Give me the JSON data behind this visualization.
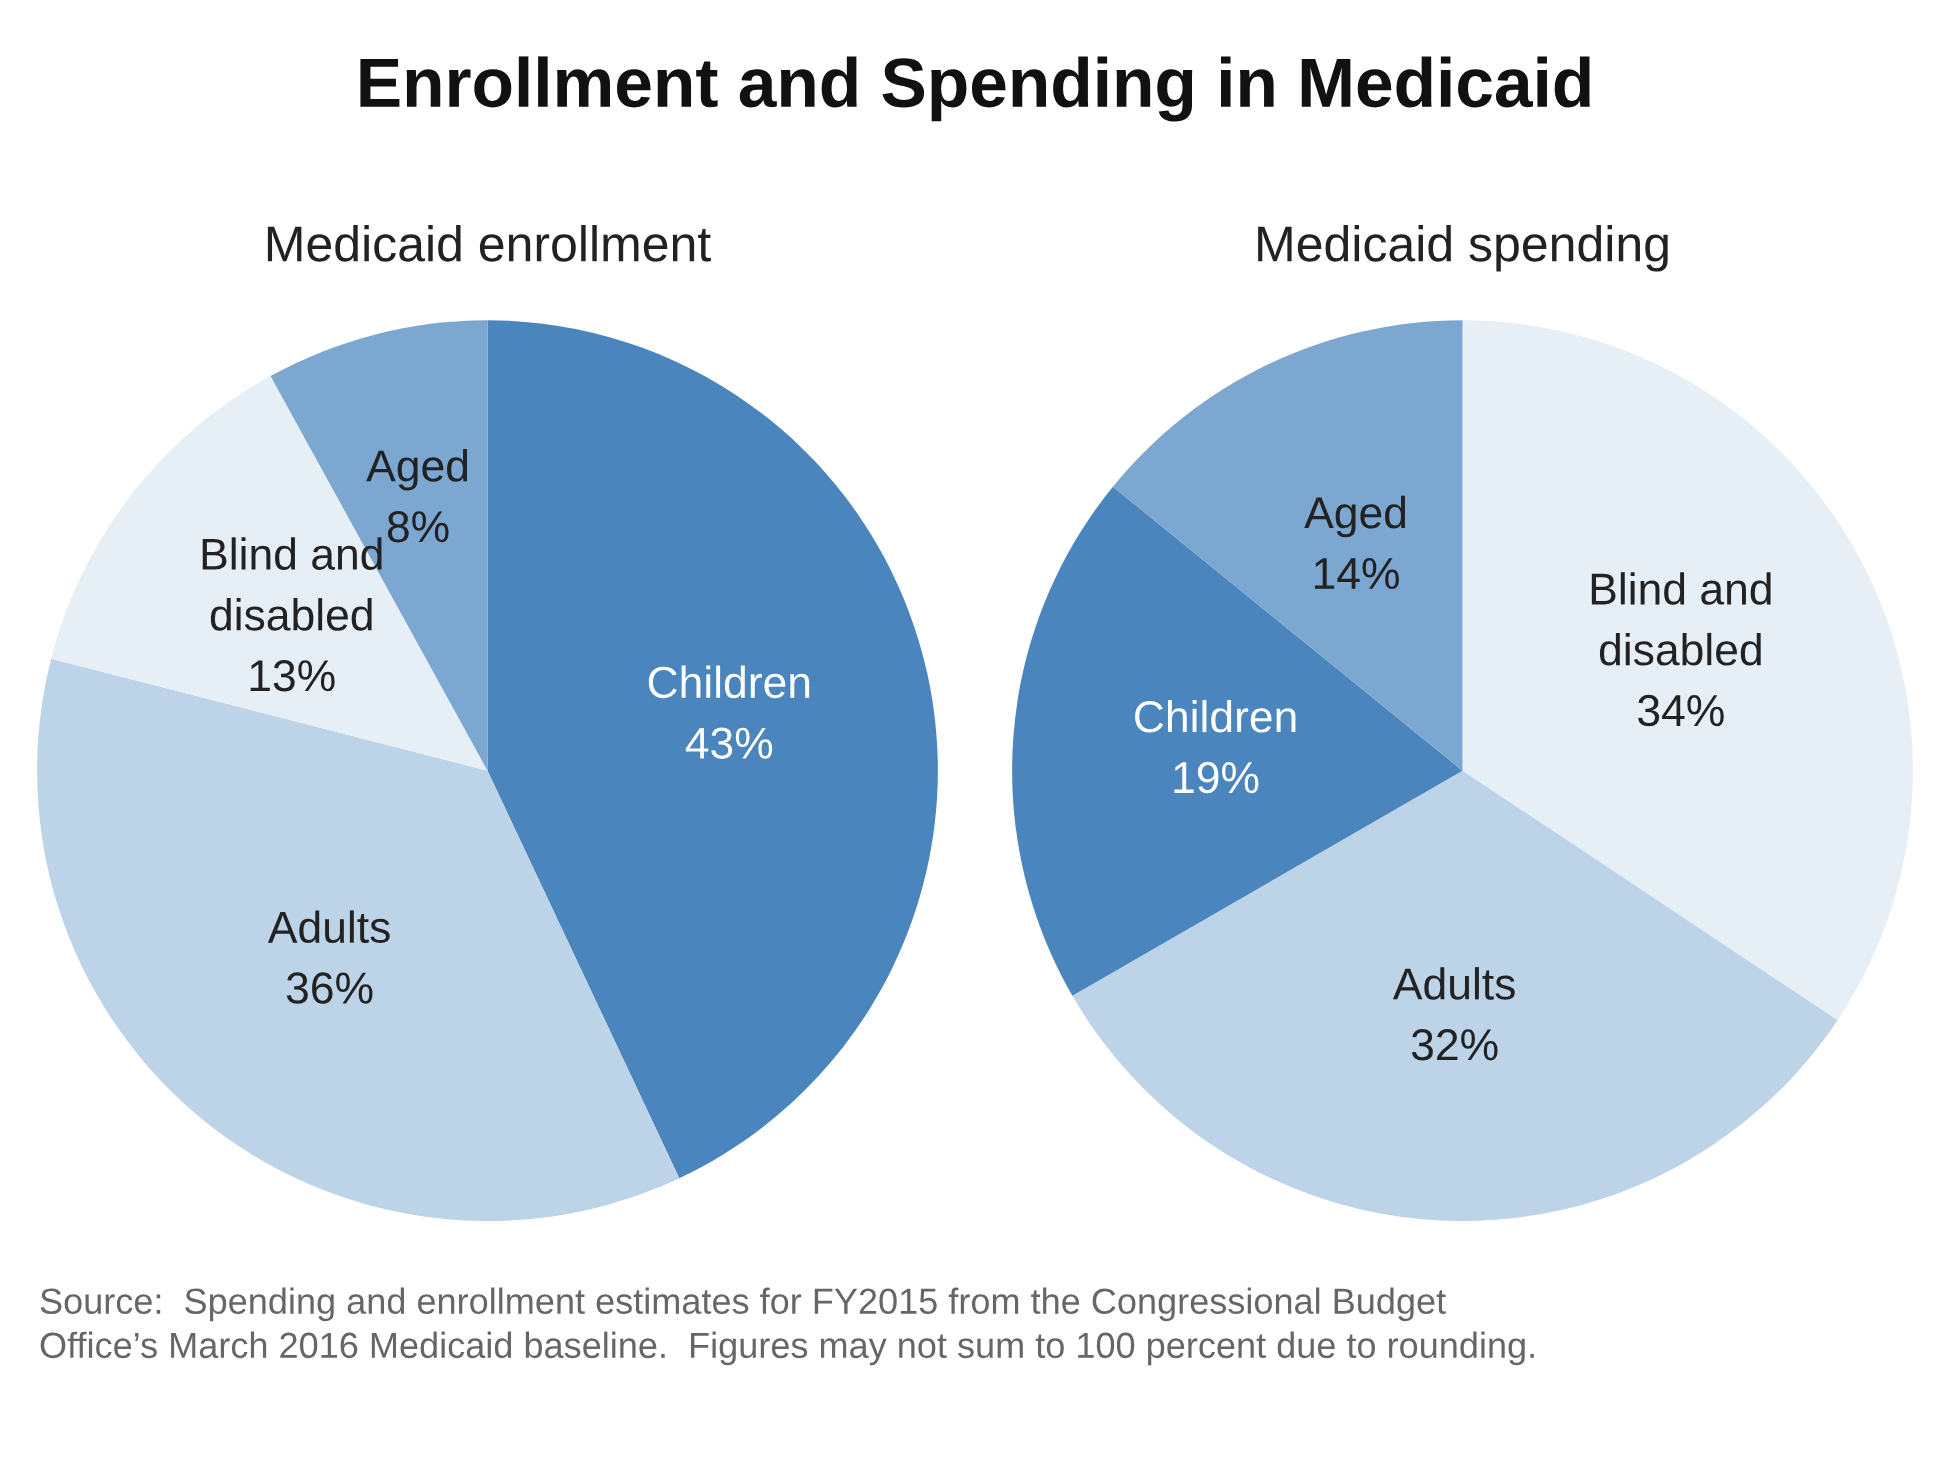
{
  "chart_data": [
    {
      "type": "pie",
      "title": "Enrollment and Spending in Medicaid",
      "subtitle": "Medicaid enrollment",
      "categories": [
        "Children",
        "Adults",
        "Blind and\ndisabled",
        "Aged"
      ],
      "values": [
        43,
        36,
        13,
        8
      ],
      "colors": [
        "#4a86bd",
        "#bcd3e8",
        "#e6eef6",
        "#7ba7d0"
      ],
      "value_labels": [
        "43%",
        "36%",
        "13%",
        "8%"
      ]
    },
    {
      "type": "pie",
      "subtitle": "Medicaid spending",
      "categories": [
        "Blind and\ndisabled",
        "Adults",
        "Children",
        "Aged"
      ],
      "values": [
        34,
        32,
        19,
        14
      ],
      "colors": [
        "#e6eef6",
        "#bcd3e8",
        "#4a86bd",
        "#7ba7d0"
      ],
      "value_labels": [
        "34%",
        "32%",
        "19%",
        "14%"
      ],
      "annotations": [
        "Source:  Spending and enrollment estimates for FY2015 from the Congressional Budget\nOffice’s March 2016 Medicaid baseline.  Figures may not sum to 100 percent due to rounding."
      ]
    }
  ]
}
